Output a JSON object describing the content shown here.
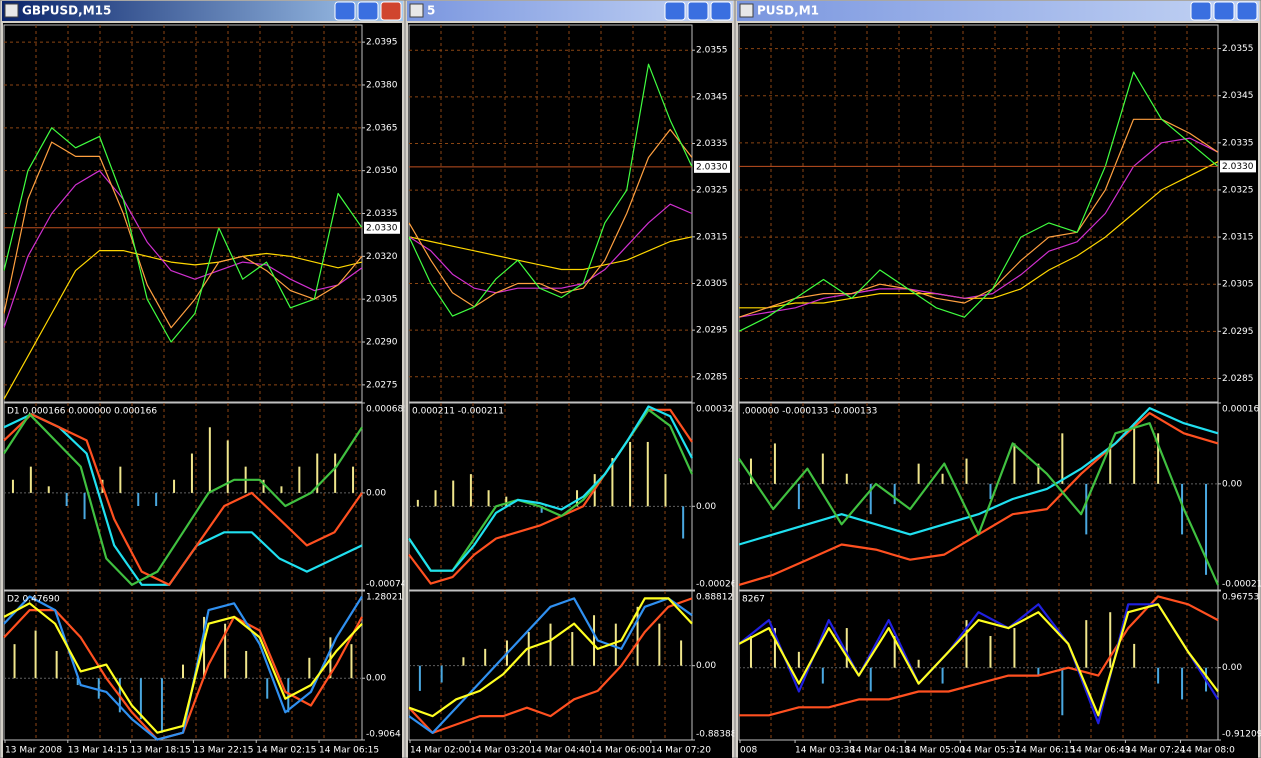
{
  "windows": [
    {
      "title": "GBPUSD,M15",
      "price_pane": {
        "ylim": [
          2.0269,
          2.0401
        ],
        "yticks": [
          2.0395,
          {
            "value": 2.038,
            "label": "2.0380"
          },
          2.0365,
          {
            "value": 2.035,
            "label": "2.0350"
          },
          2.0335,
          {
            "value": 2.032,
            "label": "2.0320"
          },
          2.0305,
          {
            "value": 2.029,
            "label": "2.0290"
          },
          2.0275
        ],
        "current_price": {
          "value": 2.033,
          "label": "2.0330"
        },
        "series": [
          {
            "color": "#ffd700",
            "values": [
              2.027,
              2.0285,
              2.03,
              2.0315,
              2.0322,
              2.0322,
              2.032,
              2.0318,
              2.0317,
              2.0318,
              2.032,
              2.0321,
              2.032,
              2.0318,
              2.0316,
              2.0318
            ]
          },
          {
            "color": "#d030d0",
            "values": [
              2.0295,
              2.032,
              2.0335,
              2.0345,
              2.035,
              2.034,
              2.0325,
              2.0315,
              2.0312,
              2.0315,
              2.0318,
              2.0317,
              2.0312,
              2.0308,
              2.031,
              2.0316
            ]
          },
          {
            "color": "#ffa040",
            "values": [
              2.03,
              2.034,
              2.036,
              2.0355,
              2.0355,
              2.0335,
              2.031,
              2.0295,
              2.0305,
              2.0318,
              2.032,
              2.0315,
              2.0308,
              2.0305,
              2.031,
              2.032
            ]
          },
          {
            "color": "#40ff40",
            "values": [
              2.0315,
              2.035,
              2.0365,
              2.0358,
              2.0362,
              2.034,
              2.0305,
              2.029,
              2.03,
              2.033,
              2.0312,
              2.0318,
              2.0302,
              2.0305,
              2.0342,
              2.033
            ]
          }
        ]
      },
      "indicator_1": {
        "label": "D1 0.000166 0.000000 0.000166",
        "ylim": [
          -0.00074,
          0.000685
        ],
        "yticks": [
          0.000685,
          {
            "value": 0,
            "label": "0.00"
          },
          -0.00074
        ],
        "histogram": {
          "positive_color": "#f0e68c",
          "negative_color": "#4aa8e0",
          "values": [
            0.0001,
            0.0002,
            5e-05,
            -0.0001,
            -0.0002,
            0.0001,
            0.0002,
            -0.0001,
            -0.0001,
            0.0001,
            0.0003,
            0.0005,
            0.0004,
            0.0002,
            0.0001,
            5e-05,
            0.0002,
            0.0003,
            0.0003,
            0.0002
          ]
        },
        "series": [
          {
            "color": "#20e0f0",
            "values": [
              0.0005,
              0.0006,
              0.0005,
              0.0003,
              -0.0004,
              -0.0007,
              -0.0007,
              -0.0004,
              -0.0003,
              -0.0003,
              -0.0005,
              -0.0006,
              -0.0005,
              -0.0004
            ]
          },
          {
            "color": "#ff5020",
            "values": [
              0.0004,
              0.0006,
              0.0005,
              0.0004,
              -0.0002,
              -0.0006,
              -0.0007,
              -0.0004,
              -0.0001,
              0.0,
              -0.0002,
              -0.0004,
              -0.0003,
              0.0
            ]
          },
          {
            "color": "#40c040",
            "values": [
              0.0003,
              0.0006,
              0.0004,
              0.0002,
              -0.0005,
              -0.0007,
              -0.0006,
              -0.0003,
              0.0,
              0.0001,
              0.0001,
              -0.0001,
              0.0,
              0.0002,
              0.0005
            ]
          }
        ]
      },
      "indicator_2": {
        "label": "D2 0.47690",
        "ylim": [
          -0.9064,
          1.28021
        ],
        "yticks": [
          1.28021,
          {
            "value": 0,
            "label": "0.00"
          },
          -0.9064
        ],
        "histogram": {
          "positive_color": "#f0e68c",
          "negative_color": "#4aa8e0",
          "values": [
            0.5,
            0.7,
            0.4,
            -0.1,
            -0.3,
            -0.5,
            -0.6,
            -0.8,
            0.2,
            0.9,
            0.8,
            0.4,
            -0.3,
            -0.5,
            0.3,
            0.6,
            0.5
          ]
        },
        "series": [
          {
            "color": "#ff5020",
            "values": [
              0.6,
              1.0,
              1.0,
              0.6,
              0.0,
              -0.5,
              -0.9,
              -0.8,
              0.2,
              0.9,
              0.7,
              -0.2,
              -0.4,
              0.2,
              0.9
            ]
          },
          {
            "color": "#3090f0",
            "values": [
              0.8,
              1.2,
              1.0,
              -0.1,
              -0.2,
              -0.6,
              -0.9,
              -0.8,
              1.0,
              1.1,
              0.5,
              -0.5,
              -0.2,
              0.6,
              1.2
            ]
          },
          {
            "color": "#ffff20",
            "values": [
              0.9,
              1.1,
              0.8,
              0.1,
              0.2,
              -0.4,
              -0.8,
              -0.7,
              0.8,
              0.9,
              0.6,
              -0.3,
              -0.1,
              0.4,
              0.8
            ]
          }
        ]
      },
      "time_labels": [
        "13 Mar 2008",
        "13 Mar 14:15",
        "13 Mar 18:15",
        "13 Mar 22:15",
        "14 Mar 02:15",
        "14 Mar 06:15"
      ]
    },
    {
      "title": "5",
      "price_pane": {
        "ylim": [
          2.02796,
          2.03604
        ],
        "yticks": [
          2.0355,
          2.0345,
          2.0335,
          2.0325,
          2.0315,
          2.0305,
          2.0295,
          2.0285
        ],
        "current_price": {
          "value": 2.033,
          "label": "2.0330"
        },
        "series": [
          {
            "color": "#ffd700",
            "values": [
              2.0315,
              2.0314,
              2.0313,
              2.0312,
              2.0311,
              2.031,
              2.0309,
              2.0308,
              2.0308,
              2.0309,
              2.031,
              2.0312,
              2.0314,
              2.0315
            ]
          },
          {
            "color": "#d030d0",
            "values": [
              2.0315,
              2.0312,
              2.0307,
              2.0304,
              2.0303,
              2.0304,
              2.0304,
              2.0304,
              2.0305,
              2.0308,
              2.0313,
              2.0318,
              2.0322,
              2.032
            ]
          },
          {
            "color": "#ffa040",
            "values": [
              2.0318,
              2.031,
              2.0303,
              2.03,
              2.0303,
              2.0305,
              2.0305,
              2.0303,
              2.0304,
              2.031,
              2.032,
              2.0332,
              2.0338,
              2.0332
            ]
          },
          {
            "color": "#40ff40",
            "values": [
              2.0315,
              2.0305,
              2.0298,
              2.03,
              2.0306,
              2.031,
              2.0304,
              2.0302,
              2.0305,
              2.0318,
              2.0325,
              2.0352,
              2.034,
              2.033
            ]
          }
        ]
      },
      "indicator_1": {
        "label": "0.000211 -0.000211",
        "ylim": [
          -0.00026,
          0.000321
        ],
        "yticks": [
          0.000321,
          {
            "value": 0,
            "label": "0.00"
          },
          -0.00026
        ],
        "histogram": {
          "positive_color": "#f0e68c",
          "negative_color": "#4aa8e0",
          "values": [
            2e-05,
            5e-05,
            8e-05,
            0.0001,
            5e-05,
            3e-05,
            0,
            -2e-05,
            0,
            5e-05,
            0.0001,
            0.00015,
            0.0002,
            0.0002,
            0.0001,
            -0.0001
          ]
        },
        "series": [
          {
            "color": "#ff5020",
            "values": [
              -0.00015,
              -0.00024,
              -0.00022,
              -0.00015,
              -0.0001,
              -8e-05,
              -6e-05,
              -3e-05,
              0,
              0.0001,
              0.0002,
              0.0003,
              0.0003,
              0.0002
            ]
          },
          {
            "color": "#40c040",
            "values": [
              -0.0001,
              -0.0002,
              -0.0002,
              -0.0001,
              0,
              2e-05,
              0,
              -3e-05,
              2e-05,
              0.0001,
              0.0002,
              0.0003,
              0.00025,
              0.0001
            ]
          },
          {
            "color": "#20e0f0",
            "values": [
              -0.0001,
              -0.0002,
              -0.0002,
              -0.00012,
              -2e-05,
              2e-05,
              1e-05,
              -1e-05,
              3e-05,
              0.0001,
              0.0002,
              0.00031,
              0.00028,
              0.00015
            ]
          }
        ]
      },
      "indicator_2": {
        "label": "",
        "ylim": [
          -0.88388,
          0.88812
        ],
        "yticks": [
          0.88812,
          {
            "value": 0,
            "label": "0.00"
          },
          -0.88388
        ],
        "histogram": {
          "positive_color": "#f0e68c",
          "negative_color": "#4aa8e0",
          "values": [
            -0.3,
            -0.2,
            0.1,
            0.2,
            0.3,
            0.4,
            0.5,
            0.4,
            0.6,
            0.5,
            0.7,
            0.5,
            0.3
          ]
        },
        "series": [
          {
            "color": "#ff5020",
            "values": [
              -0.5,
              -0.8,
              -0.7,
              -0.6,
              -0.6,
              -0.5,
              -0.6,
              -0.4,
              -0.3,
              0.0,
              0.4,
              0.7,
              0.8
            ]
          },
          {
            "color": "#3090f0",
            "values": [
              -0.6,
              -0.8,
              -0.5,
              -0.2,
              0.1,
              0.4,
              0.7,
              0.8,
              0.3,
              0.2,
              0.7,
              0.8,
              0.6
            ]
          },
          {
            "color": "#ffff20",
            "values": [
              -0.5,
              -0.6,
              -0.4,
              -0.3,
              -0.1,
              0.2,
              0.3,
              0.5,
              0.2,
              0.3,
              0.8,
              0.8,
              0.5
            ]
          }
        ]
      },
      "time_labels": [
        "14 Mar 02:00",
        "14 Mar 03:20",
        "14 Mar 04:40",
        "14 Mar 06:00",
        "14 Mar 07:20"
      ]
    },
    {
      "title": "PUSD,M1",
      "price_pane": {
        "ylim": [
          2.028,
          2.036
        ],
        "yticks": [
          2.0355,
          2.0345,
          2.0335,
          2.0325,
          2.0315,
          2.0305,
          2.0295,
          2.0285
        ],
        "current_price": {
          "value": 2.033,
          "label": "2.0330"
        },
        "series": [
          {
            "color": "#ffd700",
            "values": [
              2.03,
              2.03,
              2.0301,
              2.0301,
              2.0302,
              2.0303,
              2.0303,
              2.0303,
              2.0302,
              2.0302,
              2.0304,
              2.0308,
              2.0311,
              2.0315,
              2.032,
              2.0325,
              2.0328,
              2.0331
            ]
          },
          {
            "color": "#d030d0",
            "values": [
              2.0298,
              2.0299,
              2.03,
              2.0302,
              2.0303,
              2.0304,
              2.0304,
              2.0303,
              2.0302,
              2.0303,
              2.0307,
              2.0312,
              2.0314,
              2.032,
              2.033,
              2.0335,
              2.0336,
              2.0333
            ]
          },
          {
            "color": "#ffa040",
            "values": [
              2.0298,
              2.03,
              2.0302,
              2.0303,
              2.0303,
              2.0305,
              2.0304,
              2.0302,
              2.0301,
              2.0304,
              2.031,
              2.0315,
              2.0316,
              2.0325,
              2.034,
              2.034,
              2.0337,
              2.0333
            ]
          },
          {
            "color": "#40ff40",
            "values": [
              2.0295,
              2.0298,
              2.0302,
              2.0306,
              2.0302,
              2.0308,
              2.0304,
              2.03,
              2.0298,
              2.0304,
              2.0315,
              2.0318,
              2.0316,
              2.033,
              2.035,
              2.034,
              2.0335,
              2.033
            ]
          }
        ]
      },
      "indicator_1": {
        "label": ".000000 -0.000133 -0.000133",
        "ylim": [
          -0.00021,
          0.00016
        ],
        "yticks": [
          0.00016,
          {
            "value": 0,
            "label": "0.00"
          },
          -0.00021
        ],
        "histogram": {
          "positive_color": "#f0e68c",
          "negative_color": "#4aa8e0",
          "values": [
            5e-05,
            8e-05,
            -5e-05,
            6e-05,
            2e-05,
            -6e-05,
            -4e-05,
            4e-05,
            2e-05,
            5e-05,
            -3e-05,
            8e-05,
            4e-05,
            0.0001,
            -0.0001,
            8e-05,
            0.00012,
            0.0001,
            -0.0001,
            -0.00018
          ]
        },
        "series": [
          {
            "color": "#ff5020",
            "values": [
              -0.0002,
              -0.00018,
              -0.00015,
              -0.00012,
              -0.00013,
              -0.00015,
              -0.00014,
              -0.0001,
              -6e-05,
              -5e-05,
              2e-05,
              8e-05,
              0.00014,
              0.0001,
              8e-05
            ]
          },
          {
            "color": "#20e0f0",
            "values": [
              -0.00012,
              -0.0001,
              -8e-05,
              -6e-05,
              -8e-05,
              -0.0001,
              -8e-05,
              -6e-05,
              -3e-05,
              -1e-05,
              3e-05,
              8e-05,
              0.00015,
              0.00012,
              0.0001
            ]
          },
          {
            "color": "#40c040",
            "values": [
              5e-05,
              -5e-05,
              3e-05,
              -8e-05,
              0,
              -5e-05,
              4e-05,
              -0.0001,
              8e-05,
              2e-05,
              -6e-05,
              0.0001,
              0.00012,
              -5e-05,
              -0.0002
            ]
          }
        ]
      },
      "indicator_2": {
        "label": "8267",
        "ylim": [
          -0.91209,
          0.96753
        ],
        "yticks": [
          0.96753,
          {
            "value": 0,
            "label": "0.00"
          },
          -0.91209
        ],
        "histogram": {
          "positive_color": "#f0e68c",
          "negative_color": "#4aa8e0",
          "values": [
            0.4,
            0.5,
            0.2,
            -0.2,
            0.5,
            -0.3,
            0.4,
            0.1,
            -0.2,
            0.6,
            0.4,
            0.5,
            -0.1,
            -0.6,
            0.6,
            0.7,
            0.3,
            -0.2,
            -0.4,
            -0.3
          ]
        },
        "series": [
          {
            "color": "#ff5020",
            "values": [
              -0.6,
              -0.6,
              -0.5,
              -0.5,
              -0.4,
              -0.4,
              -0.3,
              -0.3,
              -0.2,
              -0.1,
              -0.1,
              0,
              -0.1,
              0.5,
              0.9,
              0.8,
              0.6
            ]
          },
          {
            "color": "#2020e0",
            "values": [
              0.3,
              0.6,
              -0.3,
              0.6,
              -0.1,
              0.6,
              -0.2,
              0.2,
              0.7,
              0.5,
              0.8,
              0.3,
              -0.7,
              0.8,
              0.8,
              0.2,
              -0.4
            ]
          },
          {
            "color": "#ffff20",
            "values": [
              0.3,
              0.5,
              -0.2,
              0.5,
              -0.1,
              0.5,
              -0.2,
              0.2,
              0.6,
              0.5,
              0.7,
              0.3,
              -0.6,
              0.7,
              0.8,
              0.2,
              -0.3
            ]
          }
        ]
      },
      "time_labels": [
        "008",
        "14 Mar 03:38",
        "14 Mar 04:18",
        "14 Mar 05:00",
        "14 Mar 05:37",
        "14 Mar 06:15",
        "14 Mar 06:49",
        "14 Mar 07:24",
        "14 Mar 08:0"
      ]
    }
  ]
}
